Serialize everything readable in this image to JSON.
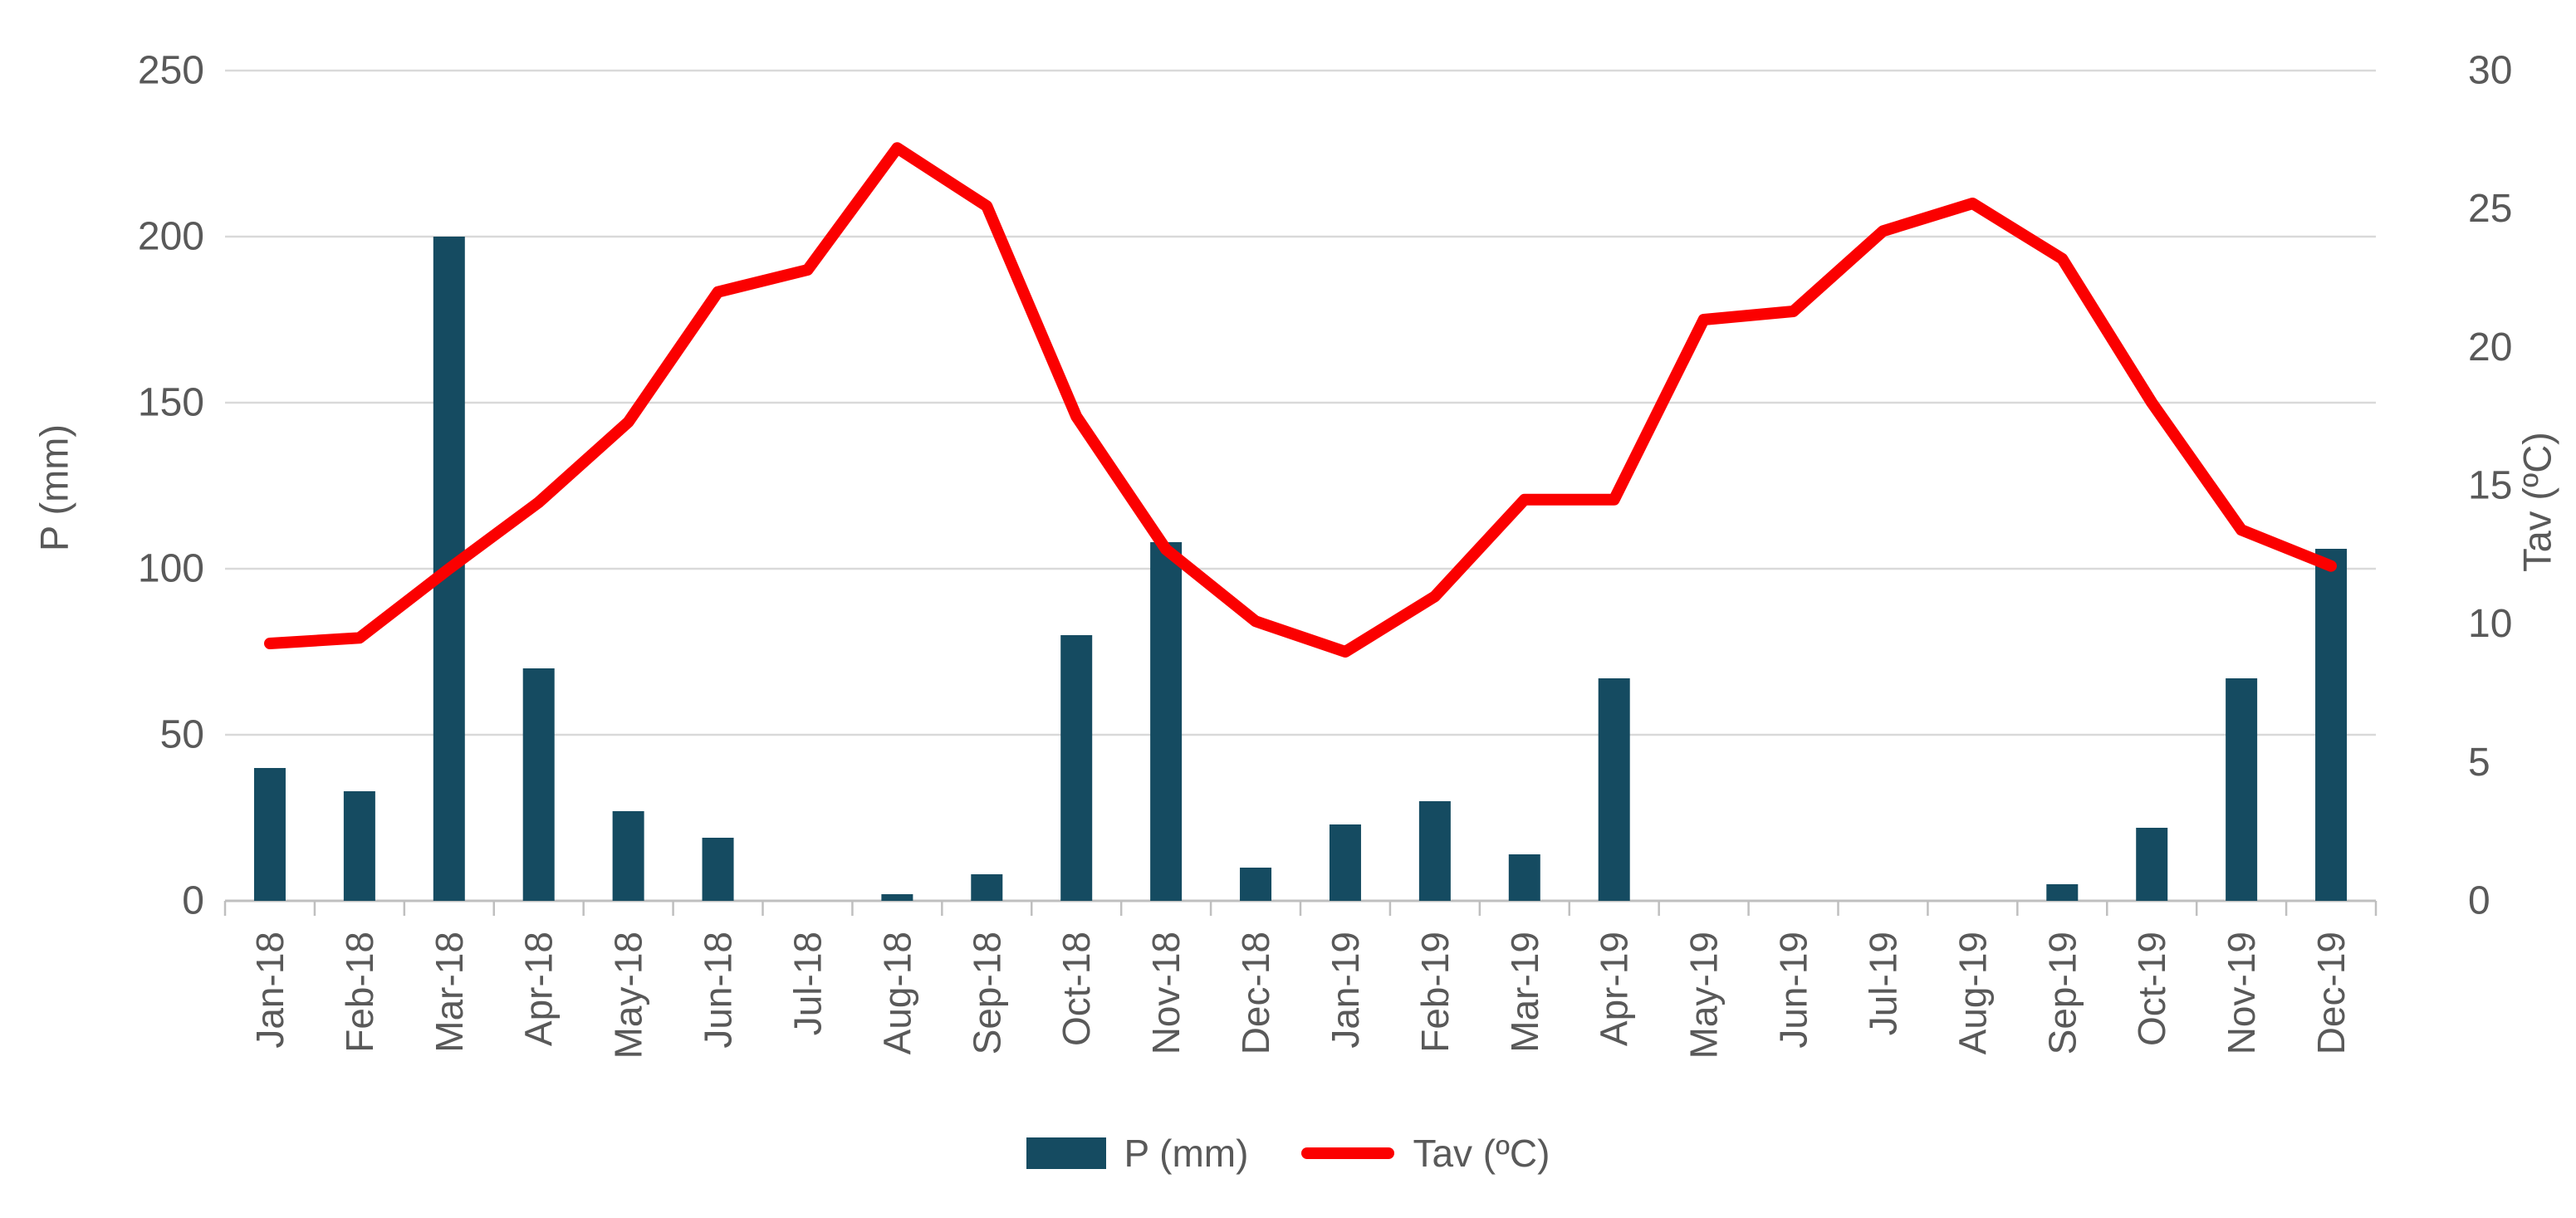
{
  "chart_data": {
    "type": "bar",
    "subtype": "combo-bar-line-dual-axis",
    "title": "",
    "categories": [
      "Jan-18",
      "Feb-18",
      "Mar-18",
      "Apr-18",
      "May-18",
      "Jun-18",
      "Jul-18",
      "Aug-18",
      "Sep-18",
      "Oct-18",
      "Nov-18",
      "Dec-18",
      "Jan-19",
      "Feb-19",
      "Mar-19",
      "Apr-19",
      "May-19",
      "Jun-19",
      "Jul-19",
      "Aug-19",
      "Sep-19",
      "Oct-19",
      "Nov-19",
      "Dec-19"
    ],
    "series": [
      {
        "name": "P (mm)",
        "type": "bar",
        "axis": "left",
        "color": "#154b61",
        "values": [
          40,
          33,
          200,
          70,
          27,
          19,
          0,
          2,
          8,
          80,
          108,
          10,
          23,
          30,
          14,
          67,
          0,
          0,
          0,
          0,
          5,
          22,
          67,
          106
        ]
      },
      {
        "name": "Tav (ºC)",
        "type": "line",
        "axis": "right",
        "color": "#fb0000",
        "values": [
          9.3,
          9.5,
          12.0,
          14.4,
          17.3,
          22.0,
          22.8,
          27.2,
          25.1,
          17.5,
          12.7,
          10.1,
          9.0,
          11.0,
          14.5,
          14.5,
          21.0,
          21.3,
          24.2,
          25.2,
          23.2,
          18.0,
          13.4,
          12.1
        ]
      }
    ],
    "left_axis": {
      "title": "P (mm)",
      "min": 0,
      "max": 250,
      "ticks": [
        0,
        50,
        100,
        150,
        200,
        250
      ]
    },
    "right_axis": {
      "title": "Tav (ºC)",
      "min": 0,
      "max": 30,
      "ticks": [
        0,
        5,
        10,
        15,
        20,
        25,
        30
      ]
    },
    "grid": true,
    "legend_position": "bottom",
    "colors": {
      "grid": "#d9d9d9",
      "axis_line": "#bfbfbf",
      "tick_text": "#595959"
    }
  },
  "axes": {
    "left_title": "P (mm)",
    "right_title": "Tav (ºC)"
  },
  "legend": {
    "bar_label": "P (mm)",
    "line_label": "Tav (ºC)"
  }
}
